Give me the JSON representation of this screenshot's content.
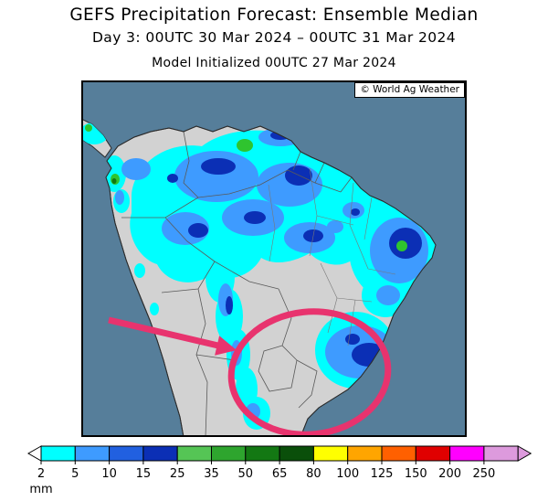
{
  "header": {
    "title": "GEFS Precipitation Forecast: Ensemble Median",
    "subtitle": "Day 3: 00UTC 30 Mar 2024 – 00UTC 31 Mar 2024",
    "initialized": "Model Initialized 00UTC 27 Mar 2024"
  },
  "map": {
    "watermark": "© World Ag Weather",
    "colors": {
      "ocean": "#567E9A",
      "land": "#D2D2D2",
      "coast": "#2B2B2B",
      "annotation": "#E8336E"
    }
  },
  "legend": {
    "unit": "mm",
    "ticks": [
      "2",
      "5",
      "10",
      "15",
      "25",
      "35",
      "50",
      "65",
      "80",
      "100",
      "125",
      "150",
      "200",
      "250"
    ],
    "colors": [
      "#00FFFF",
      "#3E9BFF",
      "#2160E0",
      "#0B2FB5",
      "#55C555",
      "#2EA52E",
      "#137813",
      "#0A4F0A",
      "#FFFF00",
      "#FFA500",
      "#FF6000",
      "#E00000",
      "#FF00FF",
      "#DD9ADD"
    ],
    "below_min_color": "#FFFFFF"
  }
}
